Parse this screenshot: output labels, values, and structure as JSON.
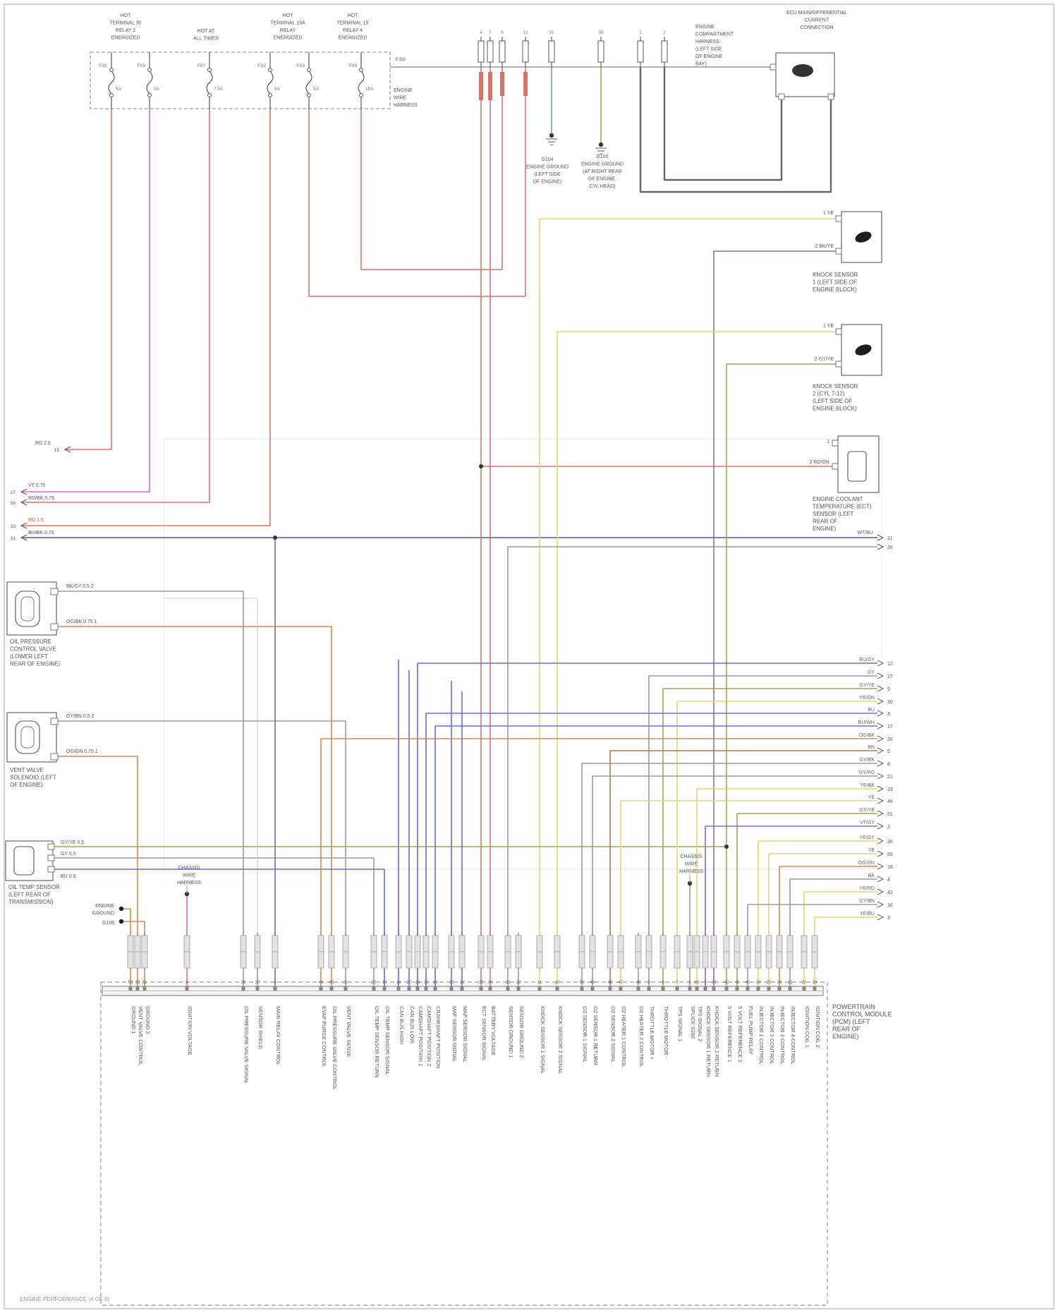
{
  "palette": {
    "rd": "#d9746a",
    "mg": "#da6bd0",
    "og": "#d98a4e",
    "ye": "#e3d96e",
    "pye": "#ece69d",
    "bu": "#6670cf",
    "nv": "#4a55b0",
    "gn": "#74b478",
    "ol": "#a9a352",
    "gy": "#9b9b9b",
    "dk": "#666666",
    "bn": "#a07d54",
    "vt": "#9a66b8",
    "lt": "#dcdcdc"
  },
  "fusebox": {
    "fuses": [
      {
        "name": "F32",
        "amp": "5A"
      },
      {
        "name": "F18",
        "amp": "5A"
      },
      {
        "name": "F07",
        "amp": "7.5A"
      },
      {
        "name": "F22",
        "amp": "5A"
      },
      {
        "name": "F23",
        "amp": "5A"
      },
      {
        "name": "F09",
        "amp": "15A"
      }
    ]
  },
  "junction": {
    "pins": [
      "4",
      "7",
      "9",
      "12",
      "31",
      "30",
      "1",
      "2"
    ]
  },
  "texts": {
    "f0": [
      "HOT",
      "TERMINAL 30",
      "RELAY 2",
      "ENERGIZED"
    ],
    "f1": [
      "HOT AT",
      "ALL TIMES"
    ],
    "f2": [
      "HOT",
      "TERMINAL 15A",
      "RELAY",
      "ENERGIZED"
    ],
    "f3": [
      "HOT",
      "TERMINAL 15",
      "RELAY 4",
      "ENERGIZED"
    ],
    "ew1": [
      "X 5/2"
    ],
    "ew2": [
      "ENGINE",
      "WIRE",
      "HARNESS"
    ],
    "tr": [
      "ENGINE",
      "COMPARTMENT",
      "HARNESS",
      "(LEFT SIDE",
      "OF ENGINE",
      "BAY)"
    ],
    "ecu": [
      "ECU MAIN/DIFFERENTIAL",
      "CURRENT",
      "CONNECTION"
    ],
    "g104": [
      "G104",
      "ENGINE GROUND",
      "(LEFT SIDE",
      "OF ENGINE)"
    ],
    "g105": [
      "G105",
      "ENGINE GROUND",
      "(AT RIGHT REAR",
      "OF ENGINE,",
      "CYL HEAD)"
    ],
    "ka": [
      "KNOCK SENSOR",
      "1 (LEFT SIDE OF",
      "ENGINE BLOCK)"
    ],
    "kb": [
      "KNOCK SENSOR",
      "2 (CYL 7-12)",
      "(LEFT SIDE OF",
      "ENGINE BLOCK)"
    ],
    "ect": [
      "ENGINE COOLANT",
      "TEMPERATURE (ECT)",
      "SENSOR (LEFT",
      "REAR OF",
      "ENGINE)"
    ],
    "oc1": [
      "OIL PRESSURE",
      "CONTROL VALVE",
      "(LOWER LEFT",
      "REAR OF ENGINE)"
    ],
    "oc2": [
      "VENT VALVE",
      "SOLENOID (LEFT",
      "OF ENGINE)"
    ],
    "oc3": [
      "OIL TEMP SENSOR",
      "(LEFT REAR OF",
      "TRANSMISSION)"
    ],
    "spl1": [
      "CHASSIS",
      "WIRE",
      "HARNESS"
    ],
    "spl2": [
      "CHASSIS",
      "WIRE",
      "HARNESS"
    ],
    "gnd6a": [
      "ENGINE",
      "GROUND"
    ],
    "gnd6b": [
      "G106"
    ],
    "pcm": [
      "POWERTRAIN",
      "CONTROL MODULE",
      "(PCM) (LEFT",
      "REAR OF",
      "ENGINE)"
    ],
    "foot": [
      "ENGINE PERFORMANCE (4 OF 9)"
    ],
    "lw1": [
      "RD 2.5"
    ],
    "lw2": [
      "VT 0.75"
    ],
    "lw3": [
      "RD/BK 0.75"
    ],
    "lw4": [
      "RD 1.5"
    ],
    "lw5": [
      "BU/BK 0.75"
    ],
    "c1a": [
      "BK/GY 0.5   2"
    ],
    "c1b": [
      "OG/BK 0.75   1"
    ],
    "c2a": [
      "GY/BN 0.5   2"
    ],
    "c2b": [
      "OG/GN 0.75   1"
    ],
    "c3a": [
      "GY/YE 0.5"
    ],
    "c3b": [
      "GY 0.5"
    ],
    "c3c": [
      "BU 0.5"
    ],
    "kaP1": [
      "1  YE"
    ],
    "kaP2": [
      "2  BK/YE"
    ],
    "kbP1": [
      "1  YE"
    ],
    "kbP2": [
      "2  GY/YE"
    ],
    "ectP1": [
      "1"
    ],
    "ectP2": [
      "2  RD/GN"
    ],
    "lp1": [
      "15"
    ],
    "lp2": [
      "27"
    ],
    "lp3": [
      "56"
    ],
    "lp4": [
      "33"
    ],
    "lp5": [
      "31"
    ],
    "w5pin": [
      "31"
    ],
    "ect2pin": [
      "26"
    ],
    "w5code": [
      "WT/BU"
    ]
  },
  "bundle1": [
    {
      "code": "BU/GY",
      "pin": "12"
    },
    {
      "code": "GY",
      "pin": "27"
    },
    {
      "code": "GY/YE",
      "pin": "9"
    },
    {
      "code": "YE/GN",
      "pin": "30"
    },
    {
      "code": "BU",
      "pin": "4"
    },
    {
      "code": "BU/WH",
      "pin": "17"
    },
    {
      "code": "OG/BK",
      "pin": "26"
    },
    {
      "code": "BN",
      "pin": "5"
    },
    {
      "code": "GY/BK",
      "pin": "8"
    },
    {
      "code": "GY/RD",
      "pin": "21"
    },
    {
      "code": "YE/BK",
      "pin": "33"
    },
    {
      "code": "YE",
      "pin": "46"
    },
    {
      "code": "GY/YE",
      "pin": "51"
    },
    {
      "code": "VT/GY",
      "pin": "2"
    }
  ],
  "bundle2": [
    {
      "code": "YE/GY",
      "pin": "30"
    },
    {
      "code": "YE",
      "pin": "55"
    },
    {
      "code": "OG/GN",
      "pin": "18"
    },
    {
      "code": "BK",
      "pin": "4"
    },
    {
      "code": "YE/RD",
      "pin": "42"
    },
    {
      "code": "GY/BN",
      "pin": "16"
    },
    {
      "code": "YE/BU",
      "pin": "3"
    }
  ],
  "pcm": {
    "pins": [
      {
        "n": "53",
        "f": "GROUND 1"
      },
      {
        "n": "52",
        "f": "VENT VALVE CONTROL"
      },
      {
        "n": "51",
        "f": "GROUND 2"
      },
      {
        "n": "4",
        "f": "IGNITION VOLTAGE"
      },
      {
        "n": "26",
        "f": "OIL PRESSURE VALVE SIGNAL"
      },
      {
        "n": "27",
        "f": "SENSOR SHIELD"
      },
      {
        "n": "3",
        "f": "MAIN RELAY CONTROL"
      },
      {
        "n": "44",
        "f": "EVAP PURGE CONTROL"
      },
      {
        "n": "45",
        "f": "OIL PRESSURE VALVE CONTROL"
      },
      {
        "n": "21",
        "f": "VENT VALVE SENSE"
      },
      {
        "n": "20",
        "f": "OIL TEMP SENSOR RETURN"
      },
      {
        "n": "19",
        "f": "OIL TEMP SENSOR SIGNAL"
      },
      {
        "n": "18",
        "f": "CAN BUS HIGH"
      },
      {
        "n": "17",
        "f": "CAN BUS LOW"
      },
      {
        "n": "16",
        "f": "CAMSHAFT POSITION 1"
      },
      {
        "n": "15",
        "f": "CAMSHAFT POSITION 2"
      },
      {
        "n": "14",
        "f": "CRANKSHAFT POSITION"
      },
      {
        "n": "13",
        "f": "MAF SENSOR SIGNAL"
      },
      {
        "n": "12",
        "f": "MAP SENSOR SIGNAL"
      },
      {
        "n": "35",
        "f": "ECT SENSOR SIGNAL"
      },
      {
        "n": "34",
        "f": "BATTERY VOLTAGE"
      },
      {
        "n": "33",
        "f": "SENSOR GROUND 1"
      },
      {
        "n": "32",
        "f": "SENSOR GROUND 2"
      },
      {
        "n": "11",
        "f": "KNOCK SENSOR 1 SIGNAL"
      },
      {
        "n": "10",
        "f": "KNOCK SENSOR 2 SIGNAL"
      },
      {
        "n": "50",
        "f": "O2 SENSOR 1 SIGNAL"
      },
      {
        "n": "49",
        "f": "O2 SENSOR 1 RETURN"
      },
      {
        "n": "48",
        "f": "O2 SENSOR 2 SIGNAL"
      },
      {
        "n": "47",
        "f": "O2 HEATER 1 CONTROL"
      },
      {
        "n": "46",
        "f": "O2 HEATER 2 CONTROL"
      },
      {
        "n": "9",
        "f": "THROTTLE MOTOR +"
      },
      {
        "n": "8",
        "f": "THROTTLE MOTOR -"
      },
      {
        "n": "7",
        "f": "TPS SIGNAL 1"
      },
      {
        "n": "6",
        "f": "SPLICE S280"
      },
      {
        "n": "66",
        "f": "TPS SIGNAL 2"
      },
      {
        "n": "5",
        "f": "KNOCK SENSOR 1 RETURN"
      },
      {
        "n": "43",
        "f": "KNOCK SENSOR 2 RETURN"
      },
      {
        "n": "42",
        "f": "5 VOLT REFERENCE 1"
      },
      {
        "n": "41",
        "f": "5 VOLT REFERENCE 2"
      },
      {
        "n": "40",
        "f": "FUEL PUMP RELAY"
      },
      {
        "n": "39",
        "f": "INJECTOR 1 CONTROL"
      },
      {
        "n": "25",
        "f": "INJECTOR 2 CONTROL"
      },
      {
        "n": "24",
        "f": "INJECTOR 3 CONTROL"
      },
      {
        "n": "23",
        "f": "INJECTOR 4 CONTROL"
      },
      {
        "n": "22",
        "f": "IGNITION COIL 1"
      },
      {
        "n": "38",
        "f": "IGNITION COIL 2"
      }
    ]
  }
}
